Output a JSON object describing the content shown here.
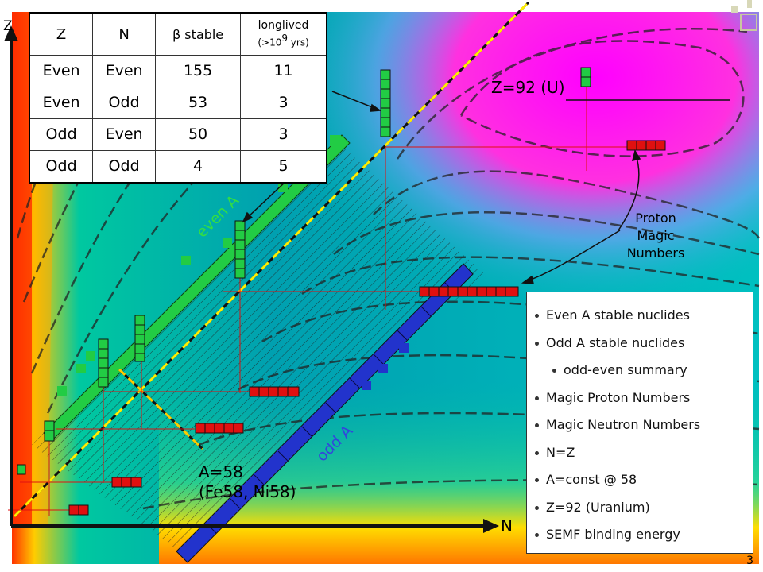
{
  "axes": {
    "z_label": "Z",
    "n_label": "N"
  },
  "table": {
    "headers": {
      "z": "Z",
      "n": "N",
      "beta_symbol": "β",
      "stable": "stable",
      "longlived": "longlived",
      "longlived_sub_prefix": "(>10",
      "longlived_sup": "9",
      "longlived_sub_suffix": " yrs)"
    },
    "rows": [
      [
        "Even",
        "Even",
        "155",
        "11"
      ],
      [
        "Even",
        "Odd",
        "53",
        "3"
      ],
      [
        "Odd",
        "Even",
        "50",
        "3"
      ],
      [
        "Odd",
        "Odd",
        "4",
        "5"
      ]
    ]
  },
  "labels": {
    "uranium": "Z=92 (U)",
    "proton_magic": [
      "Proton",
      "Magic",
      "Numbers"
    ],
    "even_a": "even A",
    "odd_a": "odd A",
    "a58_line1": "A=58",
    "a58_line2": "(Fe58, Ni58)"
  },
  "legend": {
    "items": [
      {
        "label": "Even A stable nuclides",
        "indent": false
      },
      {
        "label": "Odd A stable nuclides",
        "indent": false
      },
      {
        "label": "odd-even summary",
        "indent": true
      },
      {
        "label": "Magic Proton Numbers",
        "indent": false
      },
      {
        "label": "Magic Neutron Numbers",
        "indent": false
      },
      {
        "label": "N=Z",
        "indent": false
      },
      {
        "label": "A=const @ 58",
        "indent": false
      },
      {
        "label": "Z=92 (Uranium)",
        "indent": false
      },
      {
        "label": "SEMF binding energy",
        "indent": false
      }
    ]
  },
  "page_number": "3",
  "colors": {
    "even_a": "#22cc44",
    "odd_a": "#2233cc",
    "magic": "#e01010",
    "nz_line": "#ffee00"
  }
}
